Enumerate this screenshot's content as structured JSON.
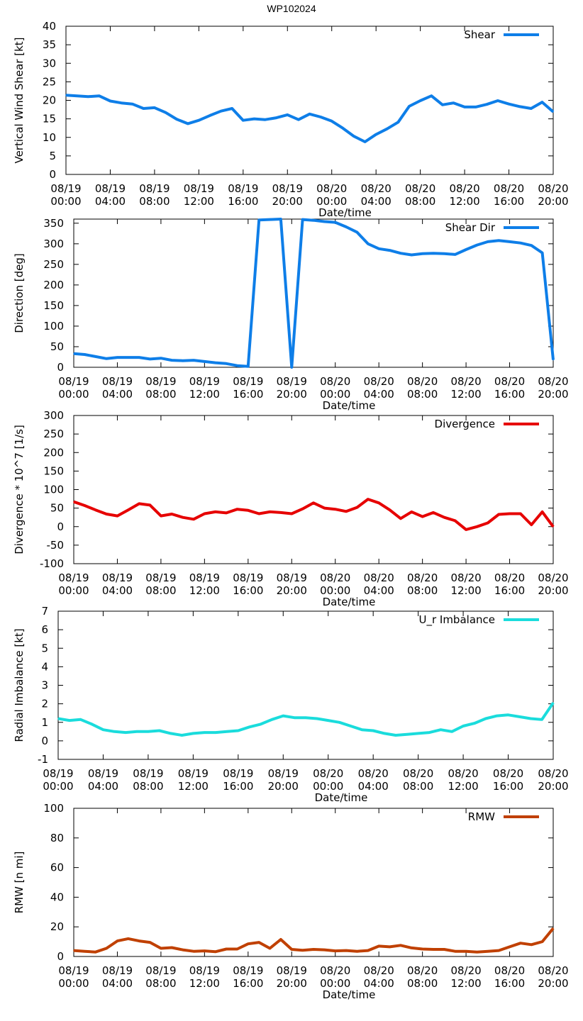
{
  "page_title": "WP102024",
  "x_tick_labels": [
    [
      "08/19",
      "00:00"
    ],
    [
      "08/19",
      "04:00"
    ],
    [
      "08/19",
      "08:00"
    ],
    [
      "08/19",
      "12:00"
    ],
    [
      "08/19",
      "16:00"
    ],
    [
      "08/19",
      "20:00"
    ],
    [
      "08/20",
      "00:00"
    ],
    [
      "08/20",
      "04:00"
    ],
    [
      "08/20",
      "08:00"
    ],
    [
      "08/20",
      "12:00"
    ],
    [
      "08/20",
      "16:00"
    ],
    [
      "08/20",
      "20:00"
    ]
  ],
  "chart_data": [
    {
      "type": "line",
      "title": "WP102024",
      "xlabel": "Date/time",
      "ylabel": "Vertical Wind Shear [kt]",
      "ylim": [
        0,
        40
      ],
      "yticks": [
        0,
        5,
        10,
        15,
        20,
        25,
        30,
        35,
        40
      ],
      "xlim": [
        0,
        44
      ],
      "legend": "top-right",
      "series": [
        {
          "name": "Shear",
          "color": "#0e7ee8",
          "x": [
            0,
            1,
            2,
            3,
            4,
            5,
            6,
            7,
            8,
            9,
            10,
            11,
            12,
            13,
            14,
            15,
            16,
            17,
            18,
            19,
            20,
            21,
            22,
            23,
            24,
            25,
            26,
            27,
            28,
            29,
            30,
            31,
            32,
            33,
            34,
            35,
            36,
            37,
            38,
            39,
            40,
            41,
            42,
            43,
            44
          ],
          "values": [
            21.4,
            21.2,
            21,
            21.2,
            19.8,
            19.3,
            19,
            17.8,
            18,
            16.7,
            14.9,
            13.7,
            14.6,
            15.9,
            17.1,
            17.8,
            14.6,
            15,
            14.8,
            15.3,
            16.1,
            14.8,
            16.3,
            15.5,
            14.4,
            12.5,
            10.3,
            8.8,
            10.8,
            12.3,
            14.1,
            18.4,
            19.9,
            21.2,
            18.8,
            19.3,
            18.2,
            18.2,
            18.9,
            19.9,
            19,
            18.3,
            17.8,
            19.5,
            16.9
          ]
        }
      ]
    },
    {
      "type": "line",
      "xlabel": "Date/time",
      "ylabel": "Direction [deg]",
      "ylim": [
        0,
        360
      ],
      "yticks": [
        0,
        50,
        100,
        150,
        200,
        250,
        300,
        350
      ],
      "xlim": [
        0,
        44
      ],
      "legend": "top-right",
      "series": [
        {
          "name": "Shear Dir",
          "color": "#0e7ee8",
          "x": [
            0,
            1,
            2,
            3,
            4,
            5,
            6,
            7,
            8,
            9,
            10,
            11,
            12,
            13,
            14,
            15,
            16,
            17,
            18,
            19,
            20,
            21,
            22,
            23,
            24,
            25,
            26,
            27,
            28,
            29,
            30,
            31,
            32,
            33,
            34,
            35,
            36,
            37,
            38,
            39,
            40,
            41,
            42,
            43,
            44
          ],
          "values": [
            33,
            31,
            26,
            21,
            24,
            24,
            24,
            20,
            22,
            17,
            16,
            17,
            14,
            11,
            9,
            4,
            2,
            358,
            359,
            360,
            0,
            359,
            357,
            354,
            352,
            341,
            328,
            300,
            288,
            284,
            277,
            273,
            276,
            277,
            276,
            274,
            286,
            297,
            305,
            308,
            305,
            302,
            296,
            278,
            18
          ]
        }
      ]
    },
    {
      "type": "line",
      "xlabel": "Date/time",
      "ylabel": "Divergence * 10^7 [1/s]",
      "ylim": [
        -100,
        300
      ],
      "yticks": [
        -100,
        -50,
        0,
        50,
        100,
        150,
        200,
        250,
        300
      ],
      "xlim": [
        0,
        44
      ],
      "legend": "top-right",
      "series": [
        {
          "name": "Divergence",
          "color": "#e60000",
          "x": [
            0,
            1,
            2,
            3,
            4,
            5,
            6,
            7,
            8,
            9,
            10,
            11,
            12,
            13,
            14,
            15,
            16,
            17,
            18,
            19,
            20,
            21,
            22,
            23,
            24,
            25,
            26,
            27,
            28,
            29,
            30,
            31,
            32,
            33,
            34,
            35,
            36,
            37,
            38,
            39,
            40,
            41,
            42,
            43,
            44
          ],
          "values": [
            67,
            57,
            45,
            34,
            29,
            45,
            62,
            58,
            29,
            34,
            25,
            20,
            35,
            40,
            37,
            47,
            44,
            35,
            40,
            38,
            35,
            48,
            64,
            50,
            47,
            41,
            52,
            74,
            64,
            45,
            22,
            40,
            27,
            38,
            25,
            16,
            -8,
            0,
            10,
            33,
            35,
            35,
            5,
            40,
            0
          ]
        }
      ]
    },
    {
      "type": "line",
      "xlabel": "Date/time",
      "ylabel": "Radial Imbalance [kt]",
      "ylim": [
        -1,
        7
      ],
      "yticks": [
        -1,
        0,
        1,
        2,
        3,
        4,
        5,
        6,
        7
      ],
      "xlim": [
        0,
        44
      ],
      "legend": "top-right",
      "series": [
        {
          "name": "U_r Imbalance",
          "color": "#1adcdc",
          "x": [
            0,
            1,
            2,
            3,
            4,
            5,
            6,
            7,
            8,
            9,
            10,
            11,
            12,
            13,
            14,
            15,
            16,
            17,
            18,
            19,
            20,
            21,
            22,
            23,
            24,
            25,
            26,
            27,
            28,
            29,
            30,
            31,
            32,
            33,
            34,
            35,
            36,
            37,
            38,
            39,
            40,
            41,
            42,
            43,
            44
          ],
          "values": [
            1.2,
            1.1,
            1.15,
            0.9,
            0.6,
            0.5,
            0.45,
            0.5,
            0.5,
            0.55,
            0.4,
            0.3,
            0.4,
            0.45,
            0.45,
            0.5,
            0.55,
            0.75,
            0.9,
            1.15,
            1.35,
            1.25,
            1.25,
            1.2,
            1.1,
            1.0,
            0.8,
            0.6,
            0.55,
            0.4,
            0.3,
            0.35,
            0.4,
            0.45,
            0.6,
            0.5,
            0.8,
            0.95,
            1.2,
            1.35,
            1.4,
            1.3,
            1.2,
            1.15,
            2.05
          ]
        }
      ]
    },
    {
      "type": "line",
      "xlabel": "Date/time",
      "ylabel": "RMW [n mi]",
      "ylim": [
        0,
        100
      ],
      "yticks": [
        0,
        20,
        40,
        60,
        80,
        100
      ],
      "xlim": [
        0,
        44
      ],
      "legend": "top-right",
      "series": [
        {
          "name": "RMW",
          "color": "#c04000",
          "x": [
            0,
            1,
            2,
            3,
            4,
            5,
            6,
            7,
            8,
            9,
            10,
            11,
            12,
            13,
            14,
            15,
            16,
            17,
            18,
            19,
            20,
            21,
            22,
            23,
            24,
            25,
            26,
            27,
            28,
            29,
            30,
            31,
            32,
            33,
            34,
            35,
            36,
            37,
            38,
            39,
            40,
            41,
            42,
            43,
            44
          ],
          "values": [
            4,
            3.5,
            3,
            5.5,
            10.5,
            12,
            10.5,
            9.5,
            5.5,
            6,
            4.5,
            3.5,
            3.8,
            3.2,
            5,
            5,
            8.5,
            9.5,
            5.5,
            11.5,
            4.8,
            4.2,
            4.8,
            4.5,
            3.8,
            4,
            3.5,
            4,
            7,
            6.5,
            7.5,
            5.8,
            5,
            4.8,
            4.8,
            3.5,
            3.5,
            3,
            3.5,
            4,
            6.5,
            9,
            8,
            10,
            19
          ]
        }
      ]
    }
  ]
}
